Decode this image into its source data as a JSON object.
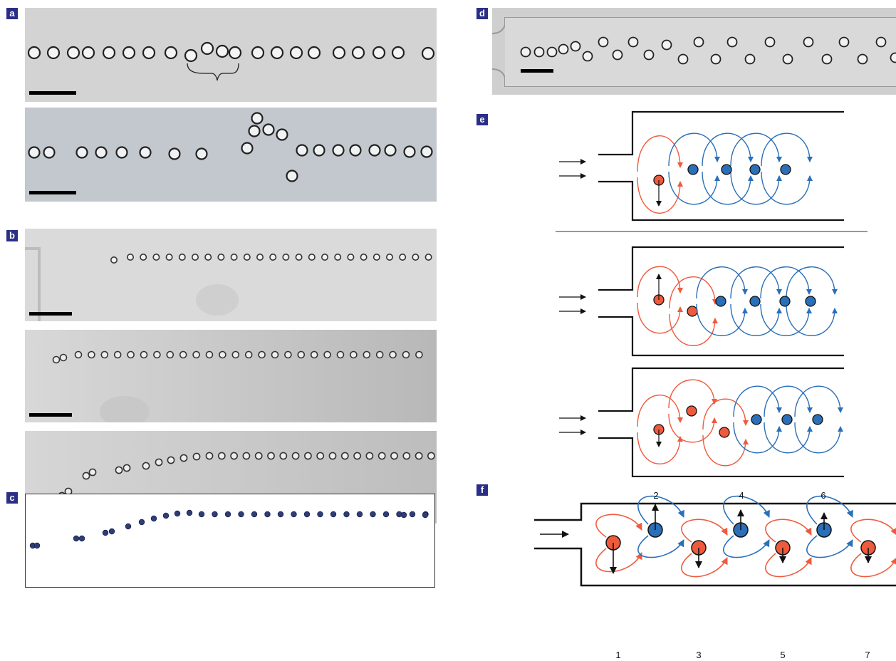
{
  "panels": {
    "a": "a",
    "b": "b",
    "c": "c",
    "d": "d",
    "e": "e",
    "f": "f"
  },
  "panel_f": {
    "top_numbers": [
      "2",
      "4",
      "6"
    ],
    "bottom_numbers": [
      "1",
      "3",
      "5",
      "7"
    ]
  },
  "colors": {
    "label_bg": "#2a2f86",
    "red": "#f05a3c",
    "blue": "#2a6fb8",
    "photo_light": "#d4d4d4",
    "photo_blue": "#c0c6cc"
  }
}
